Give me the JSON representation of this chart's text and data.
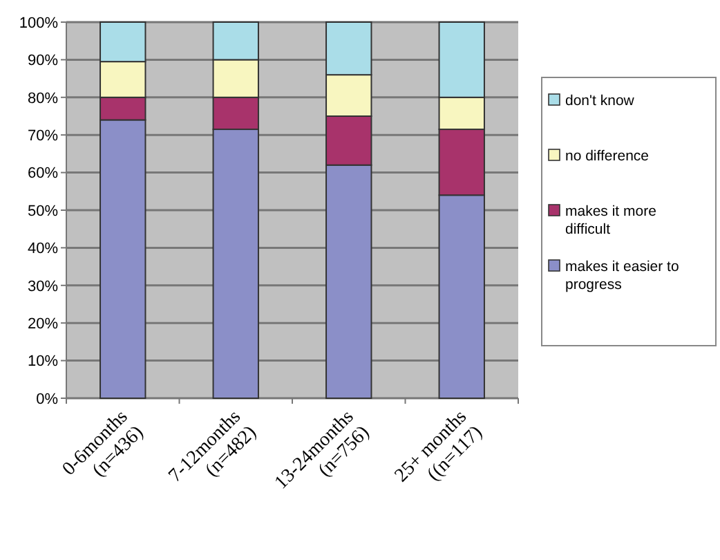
{
  "chart_data": {
    "type": "bar",
    "stacked": true,
    "categories": [
      "0-6months\n(n=436)",
      "7-12months\n(n=482)",
      "13-24months\n(n=756)",
      "25+ months\n((n=117)"
    ],
    "series": [
      {
        "name": "makes it easier to progress",
        "color": "#8b8fc8",
        "values": [
          74,
          71.5,
          62,
          54
        ]
      },
      {
        "name": "makes it more difficult",
        "color": "#a8336b",
        "values": [
          6,
          8.5,
          13,
          17.5
        ]
      },
      {
        "name": "no difference",
        "color": "#f8f6c0",
        "values": [
          9.5,
          10,
          11,
          8.5
        ]
      },
      {
        "name": "don't know",
        "color": "#aadde8",
        "values": [
          10.5,
          10,
          14,
          20
        ]
      }
    ],
    "ylim": [
      0,
      100
    ],
    "yticks": [
      {
        "value": 0,
        "label": "0%"
      },
      {
        "value": 10,
        "label": "10%"
      },
      {
        "value": 20,
        "label": "20%"
      },
      {
        "value": 30,
        "label": "30%"
      },
      {
        "value": 40,
        "label": "40%"
      },
      {
        "value": 50,
        "label": "50%"
      },
      {
        "value": 60,
        "label": "60%"
      },
      {
        "value": 70,
        "label": "70%"
      },
      {
        "value": 80,
        "label": "80%"
      },
      {
        "value": 90,
        "label": "90%"
      },
      {
        "value": 100,
        "label": "100%"
      }
    ],
    "grid": "y",
    "legend": "right"
  }
}
